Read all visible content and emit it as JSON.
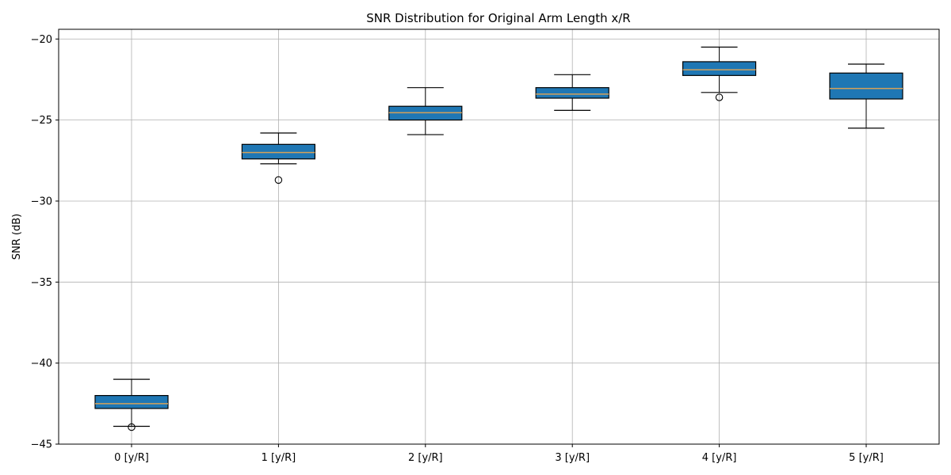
{
  "chart_data": {
    "type": "box",
    "title": "SNR Distribution for Original Arm Length x/R",
    "xlabel": "",
    "ylabel": "SNR (dB)",
    "ylim": [
      -45,
      -19.4
    ],
    "yticks": [
      -20,
      -25,
      -30,
      -35,
      -40,
      -45
    ],
    "ytick_labels": [
      "−20",
      "−25",
      "−30",
      "−35",
      "−40",
      "−45"
    ],
    "grid": true,
    "box_color": "#1f77b4",
    "median_color": "#d4a15a",
    "categories": [
      "0 [y/R]",
      "1 [y/R]",
      "2 [y/R]",
      "3 [y/R]",
      "4 [y/R]",
      "5 [y/R]"
    ],
    "boxes": [
      {
        "whisker_low": -43.9,
        "q1": -42.8,
        "median": -42.5,
        "q3": -42.0,
        "whisker_high": -41.0,
        "outliers": [
          -43.95
        ]
      },
      {
        "whisker_low": -27.7,
        "q1": -27.4,
        "median": -27.0,
        "q3": -26.5,
        "whisker_high": -25.8,
        "outliers": [
          -28.7
        ]
      },
      {
        "whisker_low": -25.9,
        "q1": -25.0,
        "median": -24.55,
        "q3": -24.15,
        "whisker_high": -23.0,
        "outliers": []
      },
      {
        "whisker_low": -24.4,
        "q1": -23.65,
        "median": -23.4,
        "q3": -23.0,
        "whisker_high": -22.2,
        "outliers": []
      },
      {
        "whisker_low": -23.3,
        "q1": -22.25,
        "median": -21.9,
        "q3": -21.4,
        "whisker_high": -20.5,
        "outliers": [
          -23.6
        ]
      },
      {
        "whisker_low": -25.5,
        "q1": -23.7,
        "median": -23.05,
        "q3": -22.1,
        "whisker_high": -21.55,
        "outliers": []
      }
    ]
  }
}
